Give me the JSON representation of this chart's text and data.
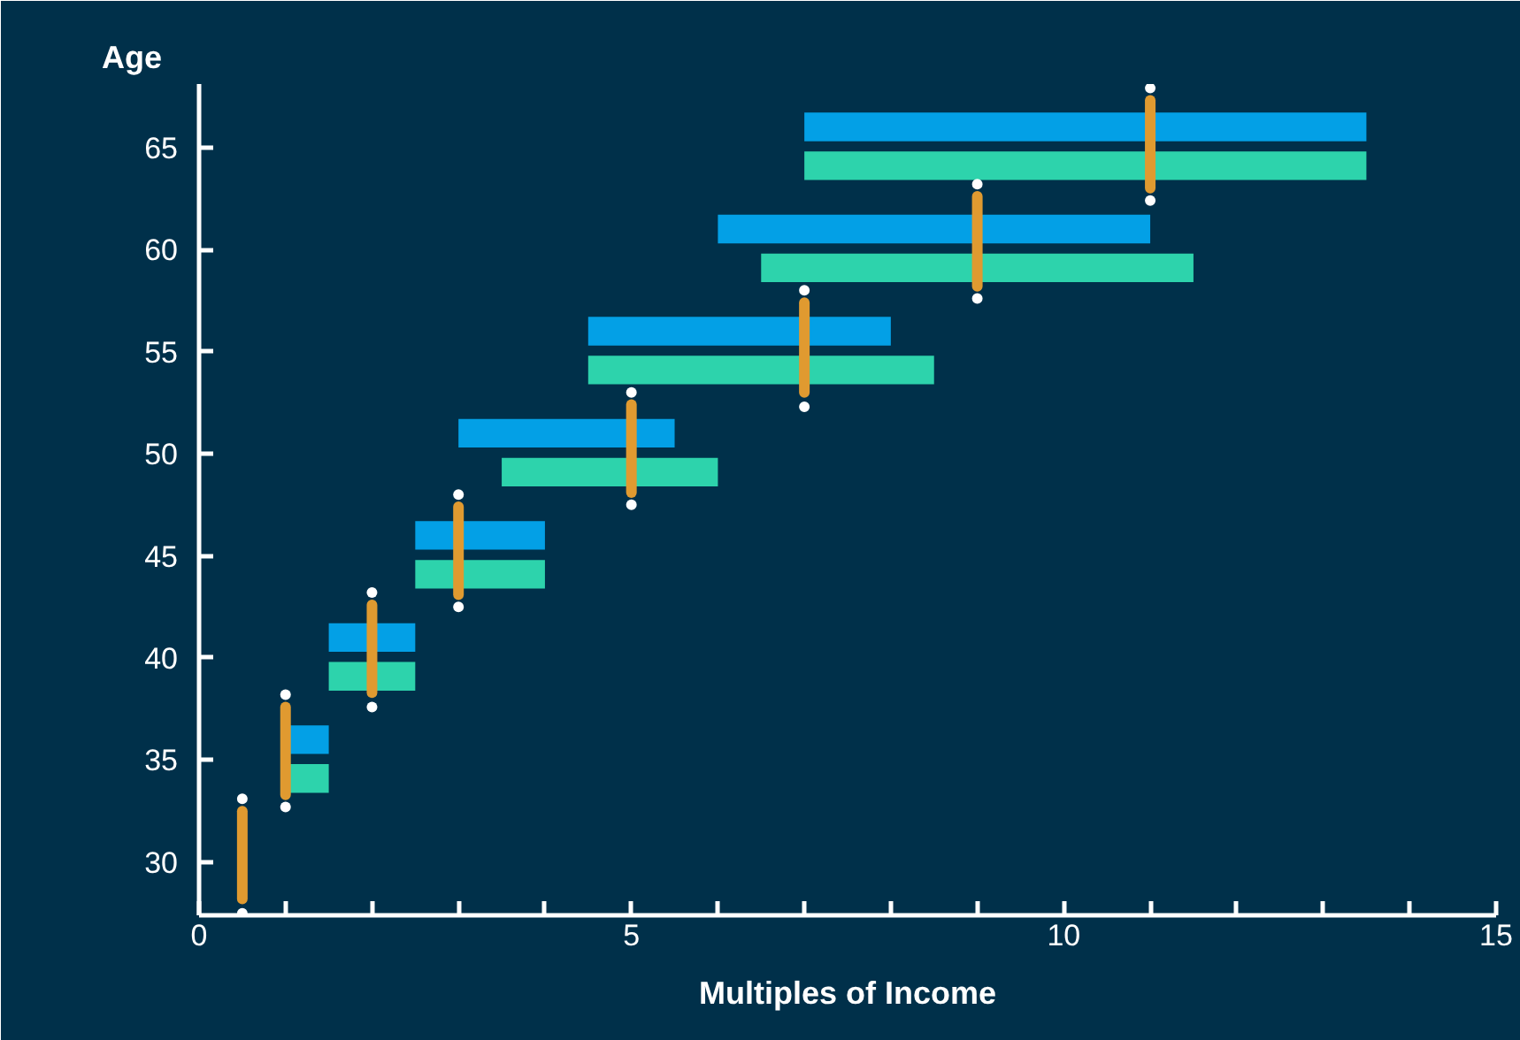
{
  "chart_data": {
    "type": "bar",
    "orientation": "horizontal",
    "ylabel": "Age",
    "xlabel": "Multiples of Income",
    "xlim": [
      0,
      15
    ],
    "xticks": [
      0,
      {
        "value": 1,
        "label": null
      },
      {
        "value": 2,
        "label": null
      },
      {
        "value": 3,
        "label": null
      },
      {
        "value": 4,
        "label": null
      },
      5,
      {
        "value": 6,
        "label": null
      },
      {
        "value": 7,
        "label": null
      },
      {
        "value": 8,
        "label": null
      },
      {
        "value": 9,
        "label": null
      },
      10,
      {
        "value": 11,
        "label": null
      },
      {
        "value": 12,
        "label": null
      },
      {
        "value": 13,
        "label": null
      },
      {
        "value": 14,
        "label": null
      },
      15
    ],
    "ylim": [
      27.4,
      68.1
    ],
    "yticks": [
      30,
      35,
      40,
      45,
      50,
      55,
      60,
      65
    ],
    "grid": false,
    "series": [
      {
        "color": "#03a0e6",
        "x": [
          36,
          41,
          46,
          51,
          56,
          61,
          66
        ],
        "base": [
          1,
          1.5,
          2.5,
          3,
          4.5,
          6,
          7
        ],
        "values": [
          0.5,
          1,
          1.5,
          2.5,
          3.5,
          5,
          6.5
        ]
      },
      {
        "color": "#2dd3ac",
        "x": [
          34.1,
          39.1,
          44.1,
          49.1,
          54.1,
          59.1,
          64.1
        ],
        "base": [
          1,
          1.5,
          2.5,
          3.5,
          4.5,
          6.5,
          7
        ],
        "values": [
          0.5,
          1,
          1.5,
          2.5,
          4,
          5,
          6.5
        ]
      },
      {
        "type": "line",
        "color": "#e09a30",
        "x": [
          28.2,
          32.5
        ],
        "values": [
          0.5,
          0.5
        ]
      },
      {
        "type": "line",
        "color": "#e09a30",
        "x": [
          33.3,
          37.6
        ],
        "values": [
          1,
          1
        ]
      },
      {
        "type": "line",
        "color": "#e09a30",
        "x": [
          38.3,
          42.6
        ],
        "values": [
          2,
          2
        ]
      },
      {
        "type": "line",
        "color": "#e09a30",
        "x": [
          43.1,
          47.4
        ],
        "values": [
          3,
          3
        ]
      },
      {
        "type": "line",
        "color": "#e09a30",
        "x": [
          48.1,
          52.4
        ],
        "values": [
          5,
          5
        ]
      },
      {
        "type": "line",
        "color": "#e09a30",
        "x": [
          53.0,
          57.4
        ],
        "values": [
          7,
          7
        ]
      },
      {
        "type": "line",
        "color": "#e09a30",
        "x": [
          58.2,
          62.6
        ],
        "values": [
          9,
          9
        ]
      },
      {
        "type": "line",
        "color": "#e09a30",
        "x": [
          63.0,
          67.3
        ],
        "values": [
          11,
          11
        ]
      },
      {
        "type": "scatter",
        "color": "#ffffff",
        "marker": "circle",
        "x": [
          27.5,
          33.1,
          32.7,
          38.2,
          37.6,
          43.2,
          42.5,
          48.0,
          47.5,
          53.0,
          52.3,
          58.0,
          57.6,
          63.2,
          62.4,
          67.9
        ],
        "values": [
          0.5,
          0.5,
          1,
          1,
          2,
          2,
          3,
          3,
          5,
          5,
          7,
          7,
          9,
          9,
          11,
          11
        ]
      }
    ]
  }
}
